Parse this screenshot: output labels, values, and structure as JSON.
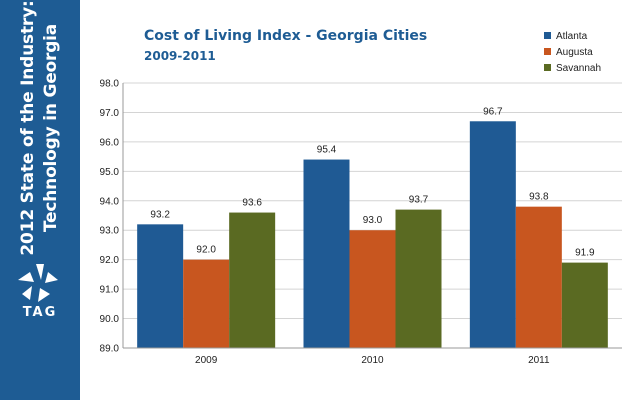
{
  "sidebar": {
    "line1": "2012 State of the Industry:",
    "line2": "Technology in Georgia",
    "logo_text": "TAG"
  },
  "chart_data": {
    "type": "bar",
    "title": "Cost of Living Index - Georgia Cities",
    "subtitle": "2009-2011",
    "categories": [
      "2009",
      "2010",
      "2011"
    ],
    "series": [
      {
        "name": "Atlanta",
        "color": "#1f5a94",
        "values": [
          93.2,
          95.4,
          96.7
        ]
      },
      {
        "name": "Augusta",
        "color": "#c8561f",
        "values": [
          92.0,
          93.0,
          93.8
        ]
      },
      {
        "name": "Savannah",
        "color": "#5a6a22",
        "values": [
          93.6,
          93.7,
          91.9
        ]
      }
    ],
    "ylim": [
      89.0,
      98.0
    ],
    "yticks": [
      "89.0",
      "90.0",
      "91.0",
      "92.0",
      "93.0",
      "94.0",
      "95.0",
      "96.0",
      "97.0",
      "98.0"
    ],
    "data_labels": true,
    "grid": "horizontal",
    "legend": "top-right"
  }
}
